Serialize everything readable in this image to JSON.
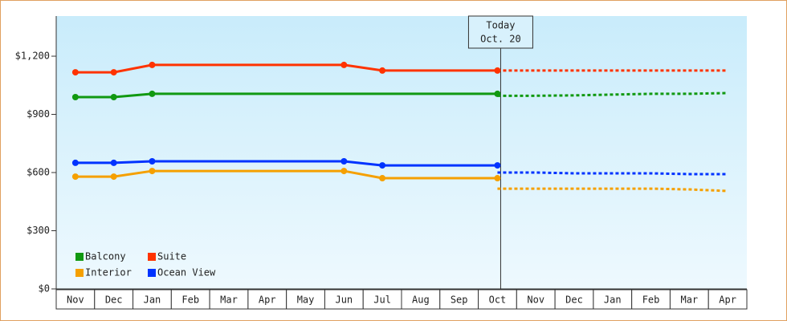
{
  "chart_data": {
    "type": "line",
    "categories": [
      "Nov",
      "Dec",
      "Jan",
      "Feb",
      "Mar",
      "Apr",
      "May",
      "Jun",
      "Jul",
      "Aug",
      "Sep",
      "Oct",
      "Nov",
      "Dec",
      "Jan",
      "Feb",
      "Mar",
      "Apr"
    ],
    "series": [
      {
        "name": "Balcony",
        "color": "#119911",
        "values": [
          989,
          989,
          1006,
          1006,
          1006,
          1006,
          1006,
          1006,
          1006,
          1006,
          1006,
          1006,
          null,
          null,
          null,
          null,
          null,
          null
        ],
        "forecast_values": [
          null,
          null,
          null,
          null,
          null,
          null,
          null,
          null,
          null,
          null,
          null,
          996,
          996,
          998,
          1002,
          1006,
          1006,
          1010
        ]
      },
      {
        "name": "Suite",
        "color": "#ff3300",
        "values": [
          1117,
          1117,
          1155,
          1155,
          1155,
          1155,
          1155,
          1155,
          1126,
          1126,
          1126,
          1126,
          null,
          null,
          null,
          null,
          null,
          null
        ],
        "forecast_values": [
          null,
          null,
          null,
          null,
          null,
          null,
          null,
          null,
          null,
          null,
          null,
          1126,
          1126,
          1126,
          1126,
          1126,
          1126,
          1126
        ]
      },
      {
        "name": "Interior",
        "color": "#f5a000",
        "values": [
          579,
          579,
          608,
          608,
          608,
          608,
          608,
          608,
          571,
          571,
          571,
          571,
          null,
          null,
          null,
          null,
          null,
          null
        ],
        "forecast_values": [
          null,
          null,
          null,
          null,
          null,
          null,
          null,
          null,
          null,
          null,
          null,
          517,
          517,
          517,
          517,
          517,
          513,
          505
        ]
      },
      {
        "name": "Ocean View",
        "color": "#0033ff",
        "values": [
          650,
          650,
          658,
          658,
          658,
          658,
          658,
          658,
          637,
          637,
          637,
          637,
          null,
          null,
          null,
          null,
          null,
          null
        ],
        "forecast_values": [
          null,
          null,
          null,
          null,
          null,
          null,
          null,
          null,
          null,
          null,
          null,
          600,
          600,
          596,
          596,
          596,
          592,
          592
        ]
      }
    ],
    "ylim": [
      0,
      1407
    ],
    "yticks": [
      {
        "value": 0,
        "label": "$0"
      },
      {
        "value": 300,
        "label": "$300"
      },
      {
        "value": 600,
        "label": "$600"
      },
      {
        "value": 900,
        "label": "$900"
      },
      {
        "value": 1200,
        "label": "$1,200"
      }
    ],
    "grid": false,
    "legend": "lower left",
    "annotation": {
      "category": "Oct",
      "text": [
        "Today",
        "Oct. 20"
      ]
    }
  }
}
